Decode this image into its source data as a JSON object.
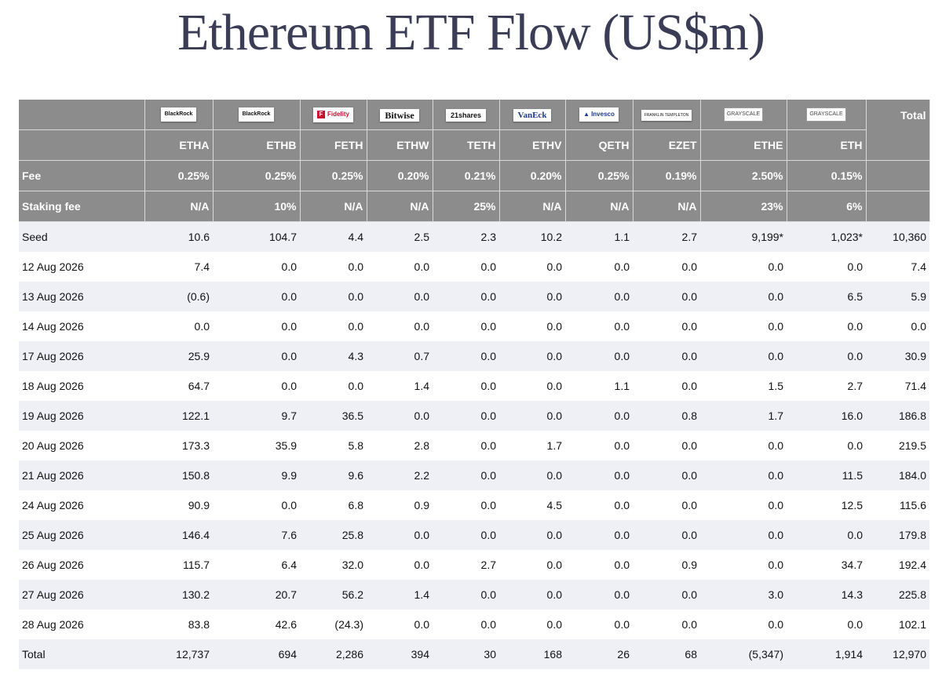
{
  "title": "Ethereum ETF Flow (US$m)",
  "funds": [
    {
      "logo": "BlackRock",
      "logo_icon": "blackrock-logo",
      "ticker": "ETHA",
      "fee": "0.25%",
      "staking": "N/A"
    },
    {
      "logo": "BlackRock",
      "logo_icon": "blackrock-logo",
      "ticker": "ETHB",
      "fee": "0.25%",
      "staking": "10%"
    },
    {
      "logo": "Fidelity",
      "logo_icon": "fidelity-logo",
      "ticker": "FETH",
      "fee": "0.25%",
      "staking": "N/A"
    },
    {
      "logo": "Bitwise",
      "logo_icon": "bitwise-logo",
      "ticker": "ETHW",
      "fee": "0.20%",
      "staking": "N/A"
    },
    {
      "logo": "21shares",
      "logo_icon": "21shares-logo",
      "ticker": "TETH",
      "fee": "0.21%",
      "staking": "25%"
    },
    {
      "logo": "VanEck",
      "logo_icon": "vaneck-logo",
      "ticker": "ETHV",
      "fee": "0.20%",
      "staking": "N/A"
    },
    {
      "logo": "Invesco",
      "logo_icon": "invesco-logo",
      "ticker": "QETH",
      "fee": "0.25%",
      "staking": "N/A"
    },
    {
      "logo": "FRANKLIN TEMPLETON",
      "logo_icon": "franklin-templeton-logo",
      "ticker": "EZET",
      "fee": "0.19%",
      "staking": "N/A"
    },
    {
      "logo": "GRAYSCALE",
      "logo_icon": "grayscale-logo",
      "ticker": "ETHE",
      "fee": "2.50%",
      "staking": "23%"
    },
    {
      "logo": "GRAYSCALE",
      "logo_icon": "grayscale-logo",
      "ticker": "ETH",
      "fee": "0.15%",
      "staking": "6%"
    }
  ],
  "labels": {
    "total_header": "Total",
    "fee": "Fee",
    "staking_fee": "Staking fee"
  },
  "rows": [
    {
      "label": "Seed",
      "cells": [
        "10.6",
        "104.7",
        "4.4",
        "2.5",
        "2.3",
        "10.2",
        "1.1",
        "2.7",
        "9,199*",
        "1,023*"
      ],
      "total": "10,360"
    },
    {
      "label": "12 Aug 2026",
      "cells": [
        "7.4",
        "0.0",
        "0.0",
        "0.0",
        "0.0",
        "0.0",
        "0.0",
        "0.0",
        "0.0",
        "0.0"
      ],
      "total": "7.4"
    },
    {
      "label": "13 Aug 2026",
      "cells": [
        "(0.6)",
        "0.0",
        "0.0",
        "0.0",
        "0.0",
        "0.0",
        "0.0",
        "0.0",
        "0.0",
        "6.5"
      ],
      "total": "5.9"
    },
    {
      "label": "14 Aug 2026",
      "cells": [
        "0.0",
        "0.0",
        "0.0",
        "0.0",
        "0.0",
        "0.0",
        "0.0",
        "0.0",
        "0.0",
        "0.0"
      ],
      "total": "0.0"
    },
    {
      "label": "17 Aug 2026",
      "cells": [
        "25.9",
        "0.0",
        "4.3",
        "0.7",
        "0.0",
        "0.0",
        "0.0",
        "0.0",
        "0.0",
        "0.0"
      ],
      "total": "30.9"
    },
    {
      "label": "18 Aug 2026",
      "cells": [
        "64.7",
        "0.0",
        "0.0",
        "1.4",
        "0.0",
        "0.0",
        "1.1",
        "0.0",
        "1.5",
        "2.7"
      ],
      "total": "71.4"
    },
    {
      "label": "19 Aug 2026",
      "cells": [
        "122.1",
        "9.7",
        "36.5",
        "0.0",
        "0.0",
        "0.0",
        "0.0",
        "0.8",
        "1.7",
        "16.0"
      ],
      "total": "186.8"
    },
    {
      "label": "20 Aug 2026",
      "cells": [
        "173.3",
        "35.9",
        "5.8",
        "2.8",
        "0.0",
        "1.7",
        "0.0",
        "0.0",
        "0.0",
        "0.0"
      ],
      "total": "219.5"
    },
    {
      "label": "21 Aug 2026",
      "cells": [
        "150.8",
        "9.9",
        "9.6",
        "2.2",
        "0.0",
        "0.0",
        "0.0",
        "0.0",
        "0.0",
        "11.5"
      ],
      "total": "184.0"
    },
    {
      "label": "24 Aug 2026",
      "cells": [
        "90.9",
        "0.0",
        "6.8",
        "0.9",
        "0.0",
        "4.5",
        "0.0",
        "0.0",
        "0.0",
        "12.5"
      ],
      "total": "115.6"
    },
    {
      "label": "25 Aug 2026",
      "cells": [
        "146.4",
        "7.6",
        "25.8",
        "0.0",
        "0.0",
        "0.0",
        "0.0",
        "0.0",
        "0.0",
        "0.0"
      ],
      "total": "179.8"
    },
    {
      "label": "26 Aug 2026",
      "cells": [
        "115.7",
        "6.4",
        "32.0",
        "0.0",
        "2.7",
        "0.0",
        "0.0",
        "0.9",
        "0.0",
        "34.7"
      ],
      "total": "192.4"
    },
    {
      "label": "27 Aug 2026",
      "cells": [
        "130.2",
        "20.7",
        "56.2",
        "1.4",
        "0.0",
        "0.0",
        "0.0",
        "0.0",
        "3.0",
        "14.3"
      ],
      "total": "225.8"
    },
    {
      "label": "28 Aug 2026",
      "cells": [
        "83.8",
        "42.6",
        "(24.3)",
        "0.0",
        "0.0",
        "0.0",
        "0.0",
        "0.0",
        "0.0",
        "0.0"
      ],
      "total": "102.1"
    },
    {
      "label": "Total",
      "cells": [
        "12,737",
        "694",
        "2,286",
        "394",
        "30",
        "168",
        "26",
        "68",
        "(5,347)",
        "1,914"
      ],
      "total": "12,970",
      "is_total": true
    }
  ],
  "colors": {
    "header_bg": "#8c8c8c",
    "shade_row": "#eef0f6",
    "negative": "#e11c1c",
    "zero": "#c4c4c4",
    "title": "#3a3d55"
  }
}
